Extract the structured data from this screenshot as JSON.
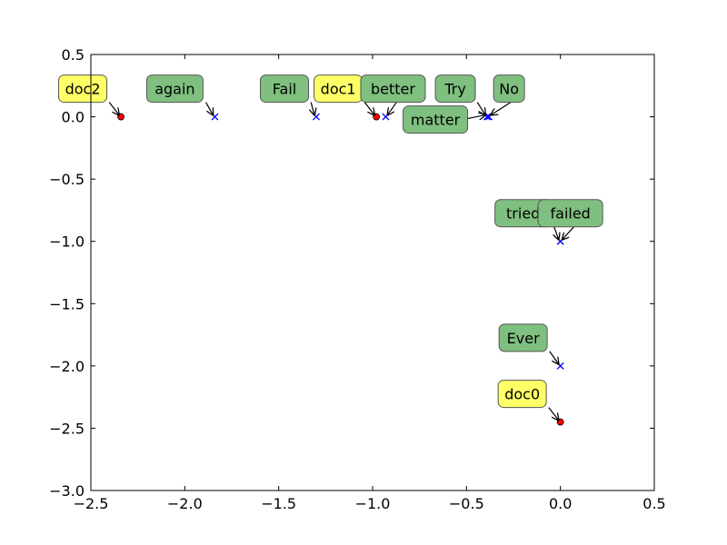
{
  "chart_data": {
    "type": "scatter",
    "title": "",
    "xlabel": "",
    "ylabel": "",
    "xlim": [
      -2.5,
      0.5
    ],
    "ylim": [
      -3.0,
      0.5
    ],
    "x_ticks": [
      "−2.5",
      "−2.0",
      "−1.5",
      "−1.0",
      "−0.5",
      "0.0",
      "0.5"
    ],
    "x_tick_values": [
      -2.5,
      -2.0,
      -1.5,
      -1.0,
      -0.5,
      0.0,
      0.5
    ],
    "y_ticks": [
      "0.5",
      "0.0",
      "−0.5",
      "−1.0",
      "−1.5",
      "−2.0",
      "−2.5",
      "−3.0"
    ],
    "y_tick_values": [
      0.5,
      0.0,
      -0.5,
      -1.0,
      -1.5,
      -2.0,
      -2.5,
      -3.0
    ],
    "grid": false,
    "series": [
      {
        "marker": "dot",
        "color": "#ff0000",
        "label_color": "#ffff66",
        "points": [
          {
            "label": "doc0",
            "x": 0.0,
            "y": -2.45
          },
          {
            "label": "doc1",
            "x": -0.98,
            "y": 0.0
          },
          {
            "label": "doc2",
            "x": -2.34,
            "y": 0.0
          }
        ]
      },
      {
        "marker": "x",
        "color": "#0000ff",
        "label_color": "#7fbf7f",
        "points": [
          {
            "label": "again",
            "x": -1.84,
            "y": 0.0
          },
          {
            "label": "Fail",
            "x": -1.3,
            "y": 0.0
          },
          {
            "label": "better",
            "x": -0.93,
            "y": 0.0
          },
          {
            "label": "Try",
            "x": -0.39,
            "y": 0.0
          },
          {
            "label": "No",
            "x": -0.38,
            "y": 0.0
          },
          {
            "label": "matter",
            "x": -0.39,
            "y": 0.0
          },
          {
            "label": "tried",
            "x": 0.0,
            "y": -1.0
          },
          {
            "label": "failed",
            "x": 0.0,
            "y": -1.0
          },
          {
            "label": "Ever",
            "x": 0.0,
            "y": -2.0
          }
        ]
      }
    ]
  }
}
